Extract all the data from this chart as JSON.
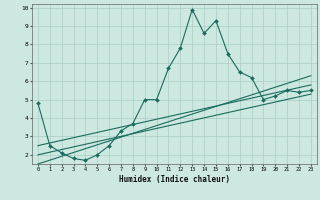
{
  "xlabel": "Humidex (Indice chaleur)",
  "ylabel": "",
  "xlim": [
    -0.5,
    23.5
  ],
  "ylim": [
    1.5,
    10.2
  ],
  "yticks": [
    2,
    3,
    4,
    5,
    6,
    7,
    8,
    9,
    10
  ],
  "xticks": [
    0,
    1,
    2,
    3,
    4,
    5,
    6,
    7,
    8,
    9,
    10,
    11,
    12,
    13,
    14,
    15,
    16,
    17,
    18,
    19,
    20,
    21,
    22,
    23
  ],
  "bg_color": "#cce8e0",
  "grid_color": "#aacec6",
  "line_color": "#1a6b5e",
  "line1_x": [
    0,
    1,
    2,
    3,
    4,
    5,
    6,
    7,
    8,
    9,
    10,
    11,
    12,
    13,
    14,
    15,
    16,
    17,
    18,
    19,
    20,
    21,
    22,
    23
  ],
  "line1_y": [
    4.8,
    2.5,
    2.1,
    1.8,
    1.7,
    2.0,
    2.5,
    3.3,
    3.7,
    5.0,
    5.0,
    6.7,
    7.8,
    9.9,
    8.6,
    9.3,
    7.5,
    6.5,
    6.2,
    5.0,
    5.2,
    5.5,
    5.4,
    5.5
  ],
  "line2_x": [
    0,
    23
  ],
  "line2_y": [
    2.5,
    5.8
  ],
  "line3_x": [
    0,
    23
  ],
  "line3_y": [
    2.0,
    5.3
  ],
  "line4_x": [
    0,
    23
  ],
  "line4_y": [
    1.5,
    6.3
  ]
}
